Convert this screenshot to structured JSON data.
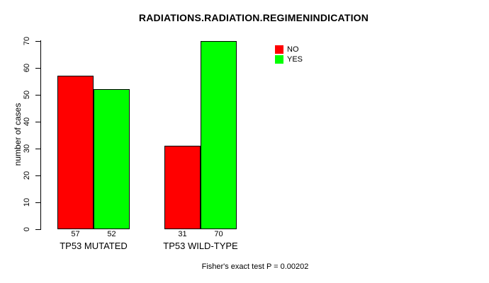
{
  "chart_data": {
    "type": "bar",
    "title": "RADIATIONS.RADIATION.REGIMENINDICATION",
    "ylabel": "number of cases",
    "xlabel": "",
    "annotation": "Fisher's exact test P = 0.00202",
    "categories": [
      "TP53 MUTATED",
      "TP53 WILD-TYPE"
    ],
    "series": [
      {
        "name": "NO",
        "color": "#ff0000",
        "values": [
          57,
          31
        ]
      },
      {
        "name": "YES",
        "color": "#00ff00",
        "values": [
          52,
          70
        ]
      }
    ],
    "bar_value_labels": [
      [
        57,
        52
      ],
      [
        31,
        70
      ]
    ],
    "ylim": [
      0,
      70
    ],
    "yticks": [
      0,
      10,
      20,
      30,
      40,
      50,
      60,
      70
    ],
    "grid": false,
    "legend_position": "top-right",
    "legend": [
      {
        "label": "NO",
        "color": "#ff0000"
      },
      {
        "label": "YES",
        "color": "#00ff00"
      }
    ]
  }
}
